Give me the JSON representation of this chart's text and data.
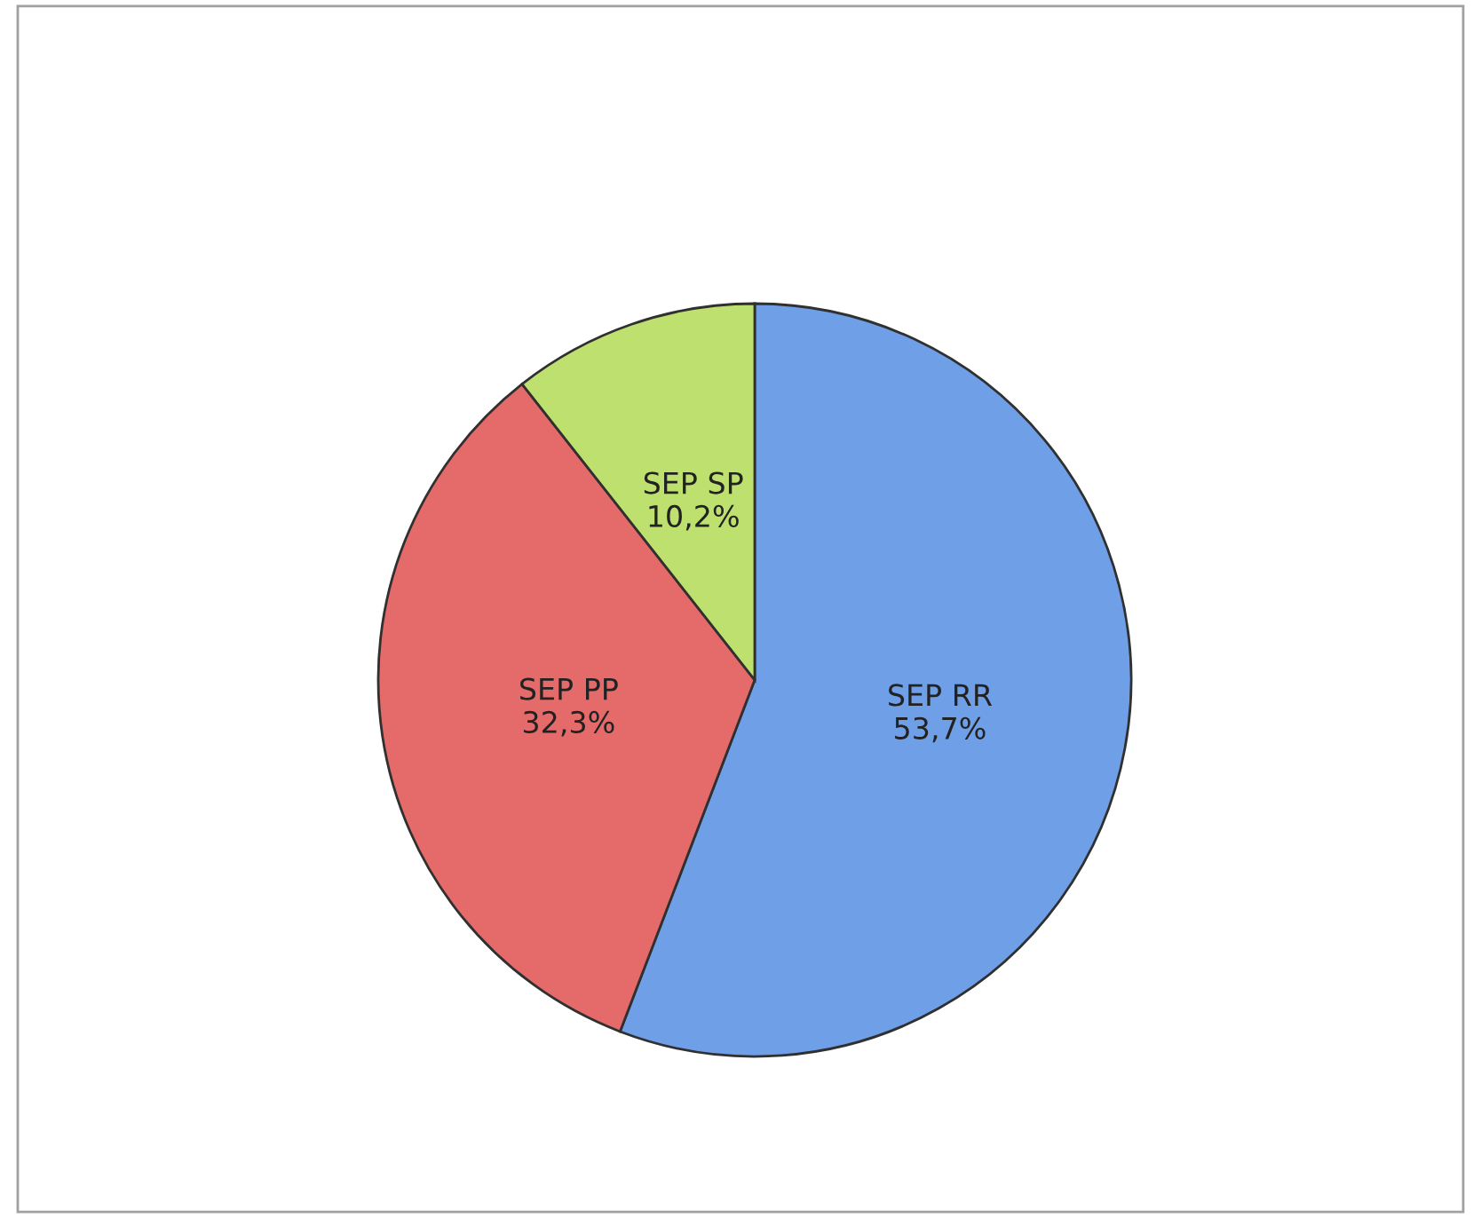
{
  "chart_data": {
    "type": "pie",
    "categories": [
      "SEP RR",
      "SEP PP",
      "SEP SP"
    ],
    "values": [
      53.7,
      32.3,
      10.2
    ],
    "value_labels": [
      "53,7%",
      "32,3%",
      "10,2%"
    ],
    "colors": [
      "#6f9fe6",
      "#e56a6a",
      "#bde06e"
    ],
    "legend": false
  }
}
